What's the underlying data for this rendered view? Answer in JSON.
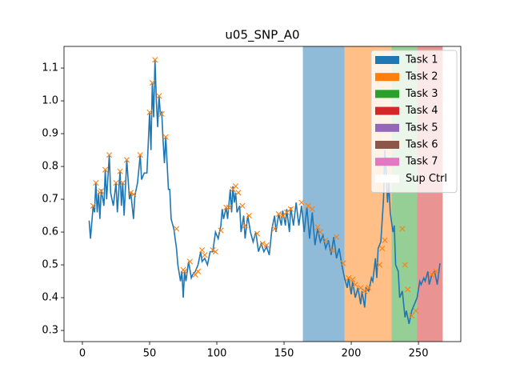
{
  "chart_data": {
    "type": "line",
    "title": "u05_SNP_A0",
    "xlim": [
      -13.7,
      281.5
    ],
    "ylim": [
      0.266,
      1.166
    ],
    "xticks": [
      0,
      50,
      100,
      150,
      200,
      250
    ],
    "yticks": [
      0.3,
      0.4,
      0.5,
      0.6,
      0.7,
      0.8,
      0.9,
      {
        "value": 1,
        "label": "1.0"
      },
      1.1
    ],
    "series": [
      {
        "color": "#1f77b4",
        "x": [
          5,
          6,
          8,
          9,
          10,
          11,
          12,
          13,
          14,
          16,
          17,
          18,
          20,
          21,
          23,
          25,
          26,
          28,
          29,
          30,
          31,
          33,
          35,
          36,
          38,
          39,
          41,
          43,
          44,
          46,
          48,
          50,
          51,
          52,
          53,
          54,
          55,
          56,
          57,
          58,
          59,
          60,
          61,
          62,
          63,
          64,
          65,
          66,
          68,
          70,
          71,
          73,
          74,
          75,
          76,
          77,
          79,
          81,
          82,
          84,
          86,
          88,
          89,
          91,
          93,
          95,
          97,
          99,
          101,
          103,
          104,
          105,
          107,
          108,
          110,
          111,
          112,
          113,
          114,
          115,
          117,
          118,
          120,
          121,
          123,
          125,
          127,
          129,
          131,
          133,
          135,
          137,
          139,
          141,
          143,
          144,
          146,
          148,
          149,
          151,
          152,
          154,
          155,
          157,
          159,
          161,
          163,
          165,
          167,
          169,
          171,
          173,
          175,
          177,
          179,
          181,
          183,
          185,
          187,
          189,
          191,
          193,
          195,
          197,
          198,
          200,
          201,
          203,
          205,
          207,
          208,
          210,
          211,
          213,
          215,
          216,
          218,
          219,
          220,
          222,
          224,
          225,
          226,
          227,
          228,
          229,
          231,
          232,
          233,
          235,
          236,
          238,
          240,
          241,
          243,
          245,
          247,
          249,
          251,
          252,
          254,
          255,
          257,
          258,
          260,
          262,
          264,
          266
        ],
        "values": [
          0.635,
          0.58,
          0.68,
          0.66,
          0.75,
          0.66,
          0.72,
          0.64,
          0.73,
          0.68,
          0.79,
          0.7,
          0.835,
          0.72,
          0.68,
          0.75,
          0.66,
          0.785,
          0.68,
          0.75,
          0.65,
          0.82,
          0.7,
          0.72,
          0.64,
          0.71,
          0.75,
          0.835,
          0.76,
          0.78,
          0.78,
          0.965,
          0.85,
          1.055,
          0.95,
          1.125,
          1.0,
          0.92,
          1.015,
          0.96,
          0.965,
          0.88,
          0.81,
          0.89,
          0.81,
          0.73,
          0.73,
          0.64,
          0.61,
          0.55,
          0.5,
          0.45,
          0.48,
          0.4,
          0.48,
          0.45,
          0.51,
          0.46,
          0.47,
          0.48,
          0.5,
          0.54,
          0.51,
          0.52,
          0.5,
          0.54,
          0.54,
          0.6,
          0.58,
          0.62,
          0.67,
          0.64,
          0.675,
          0.64,
          0.73,
          0.66,
          0.74,
          0.69,
          0.72,
          0.66,
          0.68,
          0.6,
          0.65,
          0.58,
          0.65,
          0.6,
          0.57,
          0.6,
          0.54,
          0.565,
          0.54,
          0.555,
          0.53,
          0.61,
          0.65,
          0.6,
          0.655,
          0.62,
          0.665,
          0.62,
          0.67,
          0.6,
          0.675,
          0.62,
          0.69,
          0.62,
          0.68,
          0.6,
          0.675,
          0.58,
          0.66,
          0.56,
          0.61,
          0.57,
          0.59,
          0.55,
          0.575,
          0.53,
          0.585,
          0.52,
          0.55,
          0.5,
          0.46,
          0.43,
          0.46,
          0.41,
          0.45,
          0.4,
          0.43,
          0.38,
          0.42,
          0.37,
          0.43,
          0.42,
          0.46,
          0.45,
          0.52,
          0.46,
          0.55,
          0.57,
          0.7,
          0.85,
          0.78,
          0.69,
          0.75,
          0.66,
          0.6,
          0.62,
          0.5,
          0.48,
          0.4,
          0.42,
          0.34,
          0.36,
          0.32,
          0.36,
          0.38,
          0.4,
          0.45,
          0.44,
          0.46,
          0.45,
          0.48,
          0.44,
          0.47,
          0.48,
          0.44,
          0.505
        ]
      }
    ],
    "markers": {
      "color": "#ff7f0e",
      "x": [
        8,
        10,
        13,
        14,
        17,
        20,
        25,
        28,
        30,
        33,
        36,
        38,
        43,
        50,
        52,
        54,
        57,
        59,
        62,
        70,
        75,
        76,
        80,
        84,
        86,
        89,
        91,
        97,
        99,
        103,
        107,
        109,
        112,
        114,
        116,
        119,
        121,
        124,
        130,
        134,
        137,
        143,
        146,
        149,
        152,
        155,
        163,
        168,
        171,
        175,
        177,
        181,
        186,
        189,
        194,
        198,
        201,
        203,
        207,
        210,
        213,
        221,
        223,
        225,
        238,
        240,
        242,
        245,
        248,
        260,
        263
      ],
      "y": [
        0.68,
        0.75,
        0.72,
        0.725,
        0.79,
        0.835,
        0.75,
        0.785,
        0.75,
        0.82,
        0.72,
        0.715,
        0.835,
        0.965,
        1.055,
        1.125,
        1.015,
        0.96,
        0.89,
        0.61,
        0.485,
        0.48,
        0.51,
        0.47,
        0.48,
        0.545,
        0.53,
        0.545,
        0.54,
        0.605,
        0.675,
        0.675,
        0.73,
        0.74,
        0.72,
        0.68,
        0.62,
        0.65,
        0.595,
        0.565,
        0.56,
        0.61,
        0.655,
        0.65,
        0.66,
        0.67,
        0.69,
        0.68,
        0.67,
        0.615,
        0.6,
        0.575,
        0.545,
        0.585,
        0.505,
        0.46,
        0.455,
        0.44,
        0.43,
        0.42,
        0.43,
        0.5,
        0.55,
        0.575,
        0.61,
        0.5,
        0.425,
        0.345,
        0.36,
        0.47,
        0.48
      ]
    },
    "spans": [
      {
        "x": [
          164,
          195
        ],
        "color": "#1f77b4"
      },
      {
        "x": [
          195,
          230
        ],
        "color": "#ff7f0e"
      },
      {
        "x": [
          230,
          249
        ],
        "color": "#2ca02c"
      },
      {
        "x": [
          249,
          268
        ],
        "color": "#d62728"
      }
    ],
    "legend": [
      {
        "name": "Task 1",
        "color": "#1f77b4"
      },
      {
        "name": "Task 2",
        "color": "#ff7f0e"
      },
      {
        "name": "Task 3",
        "color": "#2ca02c"
      },
      {
        "name": "Task 4",
        "color": "#d62728"
      },
      {
        "name": "Task 5",
        "color": "#9467bd"
      },
      {
        "name": "Task 6",
        "color": "#8c564b"
      },
      {
        "name": "Task 7",
        "color": "#e377c2"
      },
      {
        "name": "Sup Ctrl",
        "color": "#ffffff"
      }
    ],
    "legend_position": "upper right"
  }
}
